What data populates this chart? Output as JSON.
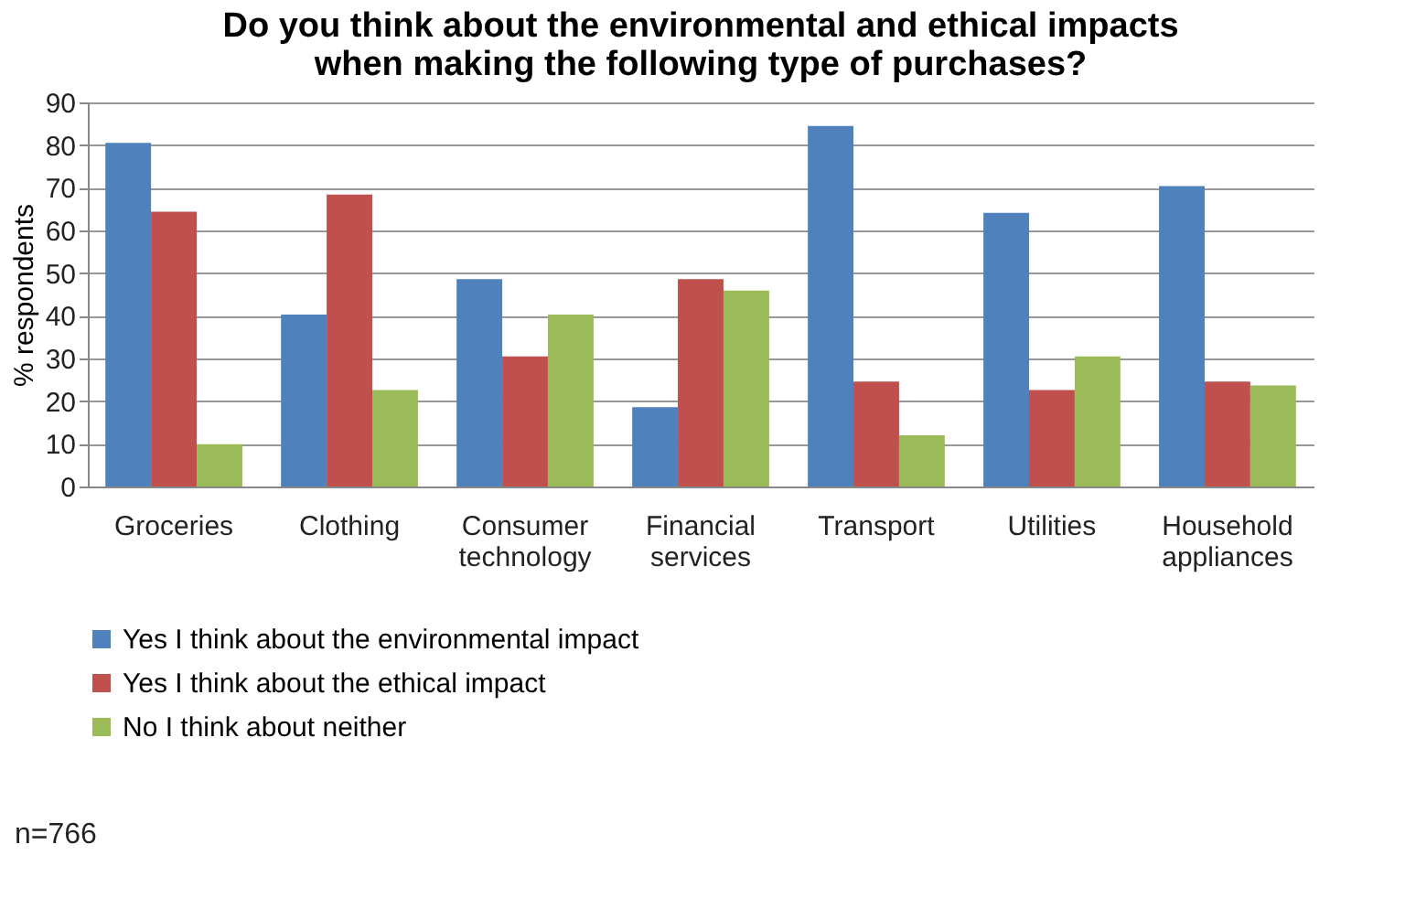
{
  "chart_data": {
    "type": "bar",
    "title": "Do you think about the environmental and ethical impacts when making the following type of purchases?",
    "ylabel": "% respondents",
    "categories": [
      "Groceries",
      "Clothing",
      "Consumer technology",
      "Financial services",
      "Transport",
      "Utilities",
      "Household appliances"
    ],
    "series": [
      {
        "name": "Yes I think about the environmental impact",
        "color": "#4f81bd",
        "values": [
          80.5,
          40.3,
          48.6,
          18.6,
          84.5,
          64.1,
          70.4
        ]
      },
      {
        "name": "Yes I think about the ethical impact",
        "color": "#c0504d",
        "values": [
          64.4,
          68.4,
          30.5,
          48.6,
          24.6,
          22.6,
          24.6
        ]
      },
      {
        "name": "No I think about neither",
        "color": "#9bbb59",
        "values": [
          9.9,
          22.6,
          40.3,
          45.9,
          12.0,
          30.5,
          23.7
        ]
      }
    ],
    "ylim": [
      0,
      90
    ],
    "yticks": [
      0,
      10,
      20,
      30,
      40,
      50,
      60,
      70,
      80,
      90
    ],
    "grid": "y",
    "legend": "bottom",
    "annotations": [
      "n=766"
    ]
  }
}
